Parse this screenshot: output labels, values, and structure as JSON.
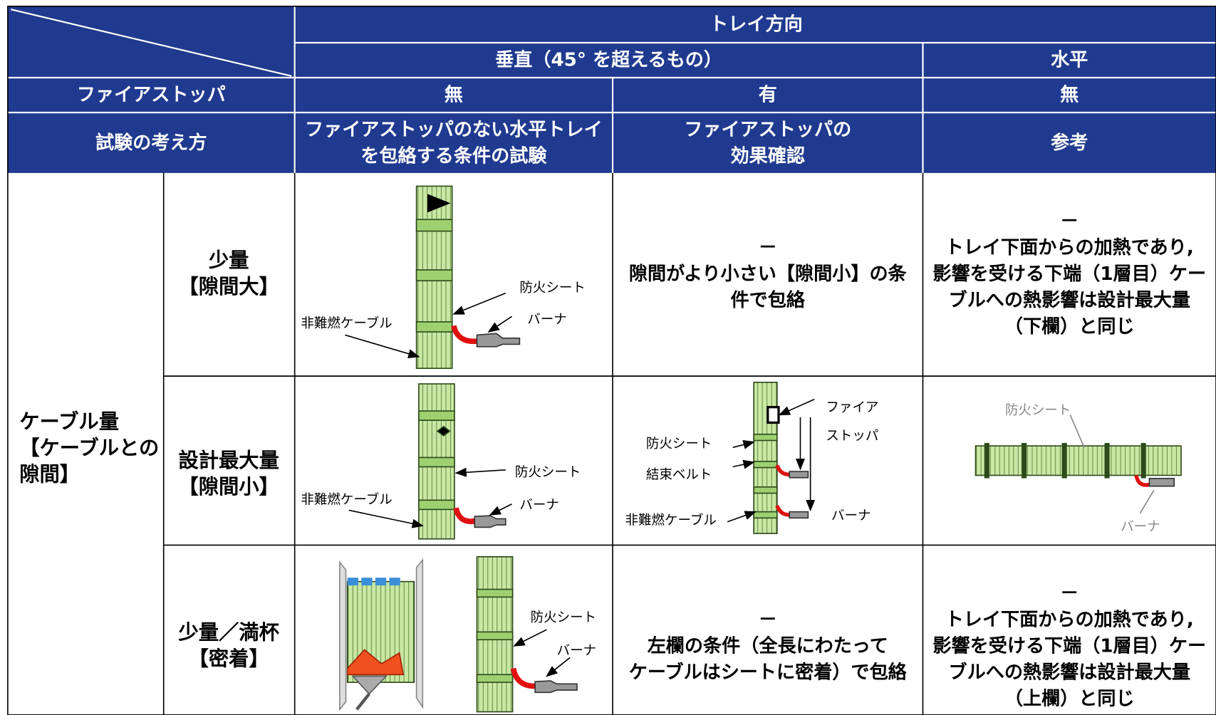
{
  "header": {
    "tray_direction": "トレイ方向",
    "vertical": "垂直（45° を超えるもの）",
    "horizontal": "水平",
    "firestopper_label": "ファイアストッパ",
    "firestopper": [
      "無",
      "有",
      "無"
    ],
    "approach_label": "試験の考え方",
    "approaches": [
      [
        "ファイアストッパのない水平トレイ",
        "を包絡する条件の試験"
      ],
      [
        "ファイアストッパの",
        "効果確認"
      ],
      [
        "参考"
      ]
    ]
  },
  "group_label": [
    "ケーブル量",
    "【ケーブルとの",
    "隙間】"
  ],
  "rows": [
    {
      "label": [
        "少量",
        "【隙間大】"
      ],
      "cells": [
        {
          "labels": {
            "cable": "非難燃ケーブル",
            "sheet": "防火シート",
            "burner": "バーナ"
          }
        },
        {
          "text": [
            "－",
            "隙間がより小さい【隙間小】の条",
            "件で包絡"
          ]
        },
        {
          "text": [
            "－",
            "トレイ下面からの加熱であり,",
            "影響を受ける下端（1層目）ケー",
            "ブルへの熱影響は設計最大量",
            "（下欄）と同じ"
          ]
        }
      ]
    },
    {
      "label": [
        "設計最大量",
        "【隙間小】"
      ],
      "cells": [
        {
          "labels": {
            "sheet": "防火シート",
            "cable": "非難燃ケーブル",
            "burner": "バーナ"
          }
        },
        {
          "labels": {
            "firestop_1": "ファイア",
            "firestop_2": "ストッパ",
            "sheet": "防火シート",
            "belt": "結束ベルト",
            "cable": "非難燃ケーブル",
            "burner": "バーナ"
          }
        },
        {
          "labels": {
            "sheet": "防火シート",
            "burner": "バーナ"
          }
        }
      ]
    },
    {
      "label": [
        "少量／満杯",
        "【密着】"
      ],
      "cells": [
        {
          "labels": {
            "sheet": "防火シート",
            "burner": "バーナ"
          }
        },
        {
          "text": [
            "－",
            "左欄の条件（全長にわたって",
            "ケーブルはシートに密着）で包絡"
          ]
        },
        {
          "text": [
            "－",
            "トレイ下面からの加熱であり,",
            "影響を受ける下端（1層目）ケー",
            "ブルへの熱影響は設計最大量",
            "（上欄）と同じ"
          ]
        }
      ]
    }
  ]
}
